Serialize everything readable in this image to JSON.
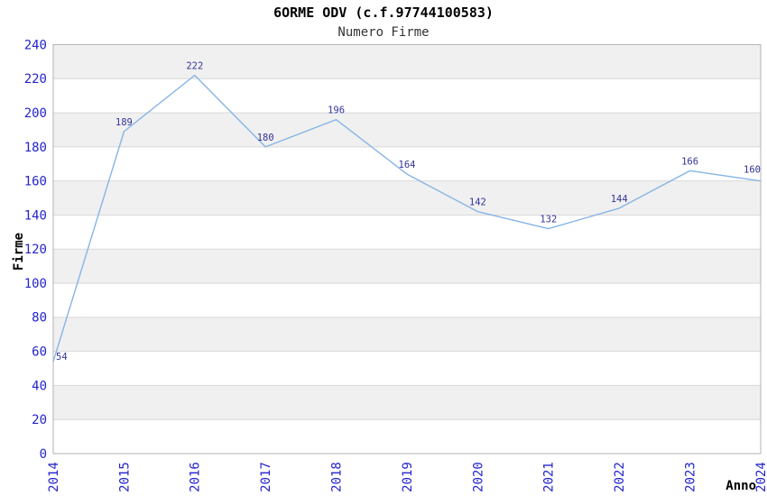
{
  "title": "6ORME ODV (c.f.97744100583)",
  "subtitle": "Numero Firme",
  "chart_data": {
    "type": "line",
    "title": "6ORME ODV (c.f.97744100583)",
    "subtitle": "Numero Firme",
    "xlabel": "Anno",
    "ylabel": "Firme",
    "x": [
      "2014",
      "2015",
      "2016",
      "2017",
      "2018",
      "2019",
      "2020",
      "2021",
      "2022",
      "2023",
      "2024"
    ],
    "series": [
      {
        "name": "Numero Firme",
        "values": [
          54,
          189,
          222,
          180,
          196,
          164,
          142,
          132,
          144,
          166,
          160
        ]
      }
    ],
    "ylim": [
      0,
      240
    ],
    "ytick_step": 20,
    "yticks": [
      0,
      20,
      40,
      60,
      80,
      100,
      120,
      140,
      160,
      180,
      200,
      220,
      240
    ],
    "grid": true,
    "banded_background": true,
    "legend_position": "none",
    "point_labels_visible": true,
    "colors": {
      "line": "#86b4e6",
      "tick_label": "#2424cc",
      "data_label": "#333399",
      "band": "#f0f0f0",
      "gridline": "#d9d9d9",
      "border": "#b3b3b3",
      "title": "#000000",
      "subtitle": "#333333",
      "axis_label": "#000000",
      "background": "#ffffff"
    }
  }
}
